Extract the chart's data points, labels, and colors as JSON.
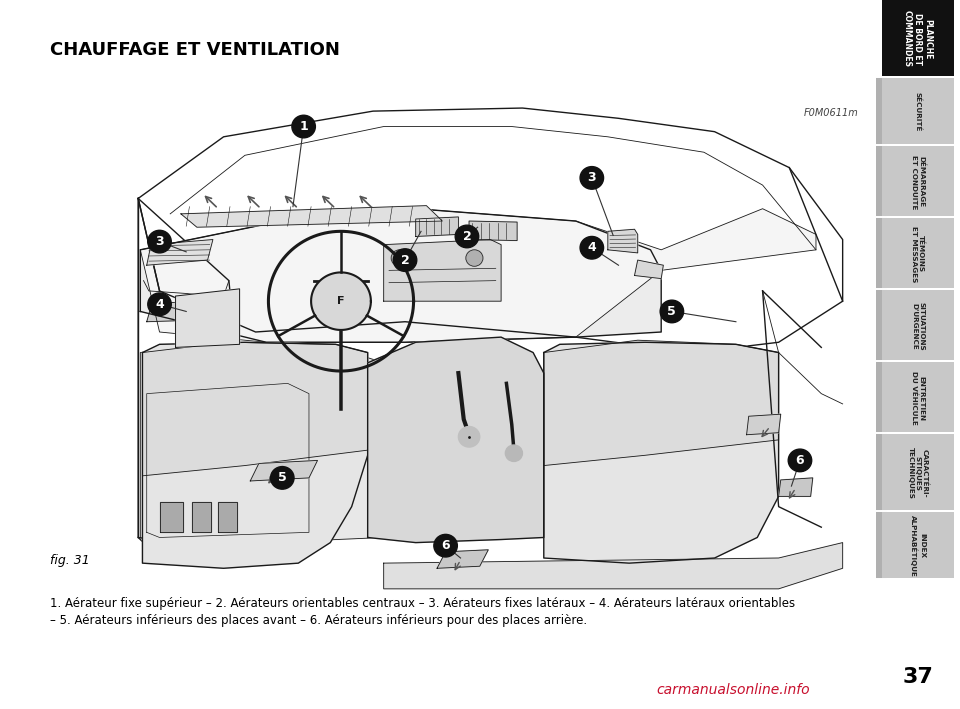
{
  "title": "CHAUFFAGE ET VENTILATION",
  "fig_label": "fig. 31",
  "fig_code": "F0M0611m",
  "description_bold": [
    "1.",
    "2.",
    "3.",
    "4.",
    "5.",
    "6."
  ],
  "description_line1": ". Aérateur fixe supérieur – ",
  "desc1_num": "1",
  "desc2_num": "2",
  "desc2_text": ". Aérateurs orientables centraux – ",
  "desc3_num": "3",
  "desc3_text": ". Aérateurs fixes latéraux – ",
  "desc4_num": "4",
  "desc4_text": ". Aérateurs latéraux orientables",
  "desc5_num": "5",
  "desc5_text": ". Aérateurs inférieurs des places avant – ",
  "desc6_num": "6",
  "desc6_text": ". Aérateurs inférieurs pour des places arrière.",
  "description_full1": "1. Aérateur fixe supérieur – 2. Aérateurs orientables centraux – 3. Aérateurs fixes latéraux – 4. Aérateurs latéraux orientables",
  "description_full2": "– 5. Aérateurs inférieurs des places avant – 6. Aérateurs inférieurs pour des places arrière.",
  "page_number": "37",
  "sidebar_items": [
    {
      "text": "PLANCHE\nDE BORD ET\nCOMMANDES",
      "active": true
    },
    {
      "text": "SÉCURITÉ",
      "active": false
    },
    {
      "text": "DÉMARRAGE\nET CONDUITE",
      "active": false
    },
    {
      "text": "TÉMOINS\nET MESSAGES",
      "active": false
    },
    {
      "text": "SITUATIONS\nD'URGENCE",
      "active": false
    },
    {
      "text": "ENTRETIEN\nDU VÉHICULE",
      "active": false
    },
    {
      "text": "CARACTÉRI-\nSTIQUES\nTECHNIQUES",
      "active": false
    },
    {
      "text": "INDEX\nALPHABÉTIQUE",
      "active": false
    }
  ],
  "bg_color": "#ffffff",
  "sidebar_bg_active": "#111111",
  "sidebar_bg_inactive": "#c8c8c8",
  "sidebar_text_active": "#ffffff",
  "sidebar_text_inactive": "#222222",
  "title_color": "#000000",
  "body_text_color": "#000000",
  "watermark_text": "carmanualsonline.info",
  "watermark_color": "#c8102e"
}
